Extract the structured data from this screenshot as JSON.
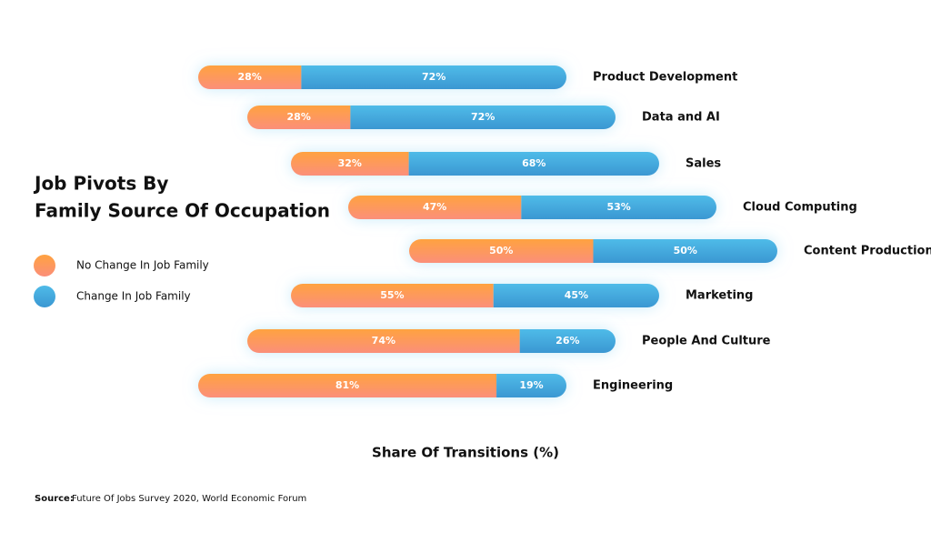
{
  "chart_data": {
    "type": "bar",
    "orientation": "horizontal",
    "stacked": true,
    "title": [
      "Job Pivots By",
      "Family Source Of Occupation"
    ],
    "x_label": "Share Of Transitions (%)",
    "categories": [
      "Product Development",
      "Data and AI",
      "Sales",
      "Cloud Computing",
      "Content Production",
      "Marketing",
      "People And Culture",
      "Engineering"
    ],
    "series": [
      {
        "name": "No Change In Job Family",
        "color": "#fa9a4b",
        "values": [
          28,
          28,
          32,
          47,
          50,
          55,
          74,
          81
        ],
        "value_labels": [
          "28%",
          "28%",
          "32%",
          "47%",
          "50%",
          "55%",
          "74%",
          "81%"
        ]
      },
      {
        "name": "Change In Job Family",
        "color": "#45ace0",
        "values": [
          72,
          72,
          68,
          53,
          50,
          45,
          26,
          19
        ],
        "value_labels": [
          "72%",
          "72%",
          "68%",
          "53%",
          "50%",
          "45%",
          "26%",
          "19%"
        ]
      }
    ],
    "source_label": "Source:",
    "source": "Future Of Jobs Survey 2020, World Economic Forum"
  }
}
